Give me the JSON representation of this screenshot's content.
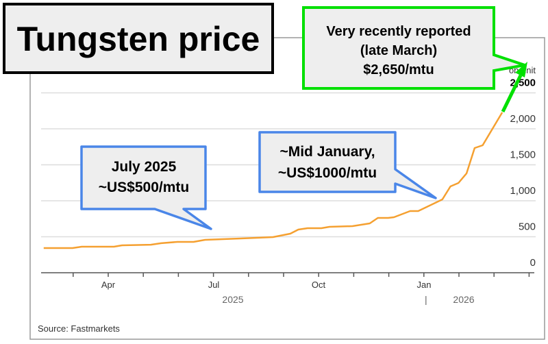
{
  "title": "Tungsten price",
  "source": "Source: Fastmarkets",
  "annotations": {
    "latest": [
      "Very recently reported",
      "(late March)",
      "$2,650/mtu"
    ],
    "july": [
      "July 2025",
      "~US$500/mtu"
    ],
    "january": [
      "~Mid January,",
      "~US$1000/mtu"
    ]
  },
  "colors": {
    "line": "#f5a030",
    "callout_blue": "#4a86e8",
    "callout_green": "#00e000",
    "callout_fill": "#eeeeee"
  },
  "chart_data": {
    "type": "line",
    "title": "Tungsten price",
    "yunit_label": "on unit",
    "ylim": [
      0,
      2500
    ],
    "yticks": [
      0,
      500,
      1000,
      1500,
      2000,
      2500
    ],
    "ytick_labels": [
      "0",
      "500",
      "1,000",
      "1,500",
      "2,000",
      "2,500"
    ],
    "xticks": [
      "Apr",
      "Jul",
      "Oct",
      "Jan"
    ],
    "year_labels": [
      "2025",
      "2026"
    ],
    "grid": true,
    "x": [
      "2025-02-04",
      "2025-03-01",
      "2025-03-09",
      "2025-04-06",
      "2025-04-13",
      "2025-05-08",
      "2025-05-17",
      "2025-05-31",
      "2025-06-14",
      "2025-06-24",
      "2025-07-25",
      "2025-08-08",
      "2025-08-22",
      "2025-09-06",
      "2025-09-13",
      "2025-09-21",
      "2025-10-03",
      "2025-10-10",
      "2025-10-30",
      "2025-11-14",
      "2025-11-21",
      "2025-11-30",
      "2025-12-05",
      "2025-12-19",
      "2025-12-26",
      "2026-01-16",
      "2026-01-23",
      "2026-01-30",
      "2026-02-06",
      "2026-02-13",
      "2026-02-20",
      "2026-03-09"
    ],
    "values": [
      343,
      343,
      362,
      362,
      381,
      390,
      410,
      429,
      429,
      457,
      476,
      486,
      495,
      543,
      600,
      619,
      619,
      638,
      648,
      686,
      762,
      762,
      771,
      857,
      857,
      1019,
      1200,
      1248,
      1381,
      1733,
      1771,
      2229
    ]
  }
}
